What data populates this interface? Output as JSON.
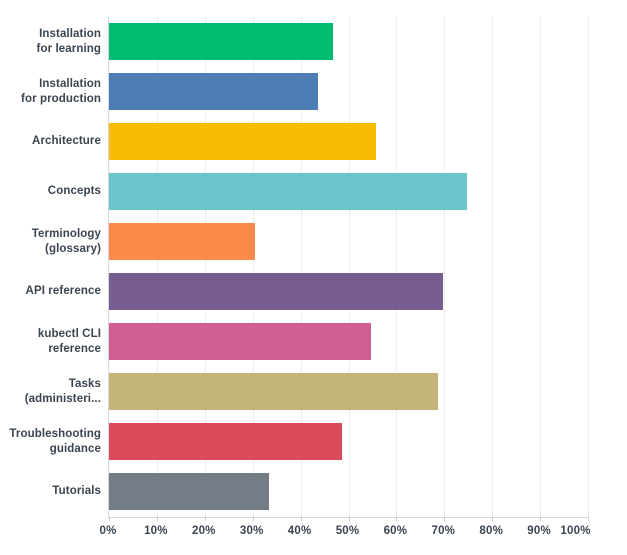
{
  "chart_data": {
    "type": "bar",
    "orientation": "horizontal",
    "categories": [
      "Installation for learning",
      "Installation for production",
      "Architecture",
      "Concepts",
      "Terminology (glossary)",
      "API reference",
      "kubectl CLI reference",
      "Tasks (administeri...",
      "Troubleshooting guidance",
      "Tutorials"
    ],
    "label_lines": [
      [
        "Installation",
        "for learning"
      ],
      [
        "Installation",
        "for production"
      ],
      [
        "Architecture"
      ],
      [
        "Concepts"
      ],
      [
        "Terminology",
        "(glossary)"
      ],
      [
        "API reference"
      ],
      [
        "kubectl CLI",
        "reference"
      ],
      [
        "Tasks",
        "(administeri..."
      ],
      [
        "Troubleshooting",
        "guidance"
      ],
      [
        "Tutorials"
      ]
    ],
    "values": [
      46.7,
      43.7,
      55.7,
      74.8,
      30.4,
      69.7,
      54.7,
      68.6,
      48.6,
      33.3
    ],
    "bar_colors": [
      "#00BC70",
      "#4E7CB5",
      "#F7BD02",
      "#6CC5CB",
      "#FC8A4B",
      "#775C90",
      "#D05E92",
      "#C5B477",
      "#DA4B5C",
      "#747D85"
    ],
    "x_tick_labels": [
      "0%",
      "10%",
      "20%",
      "30%",
      "40%",
      "50%",
      "60%",
      "70%",
      "80%",
      "90%",
      "100%"
    ],
    "xlim": [
      0,
      100
    ],
    "grid": "vertical gridlines every 10%",
    "legend": "none"
  },
  "colors": {
    "background": "#FFFFFF",
    "axis_line": "#D6D9DB",
    "gridline": "#EDEDED",
    "tick_mark": "#C9CDD1",
    "label_text": "#3A4550",
    "axis_label_text": "#39444F"
  }
}
